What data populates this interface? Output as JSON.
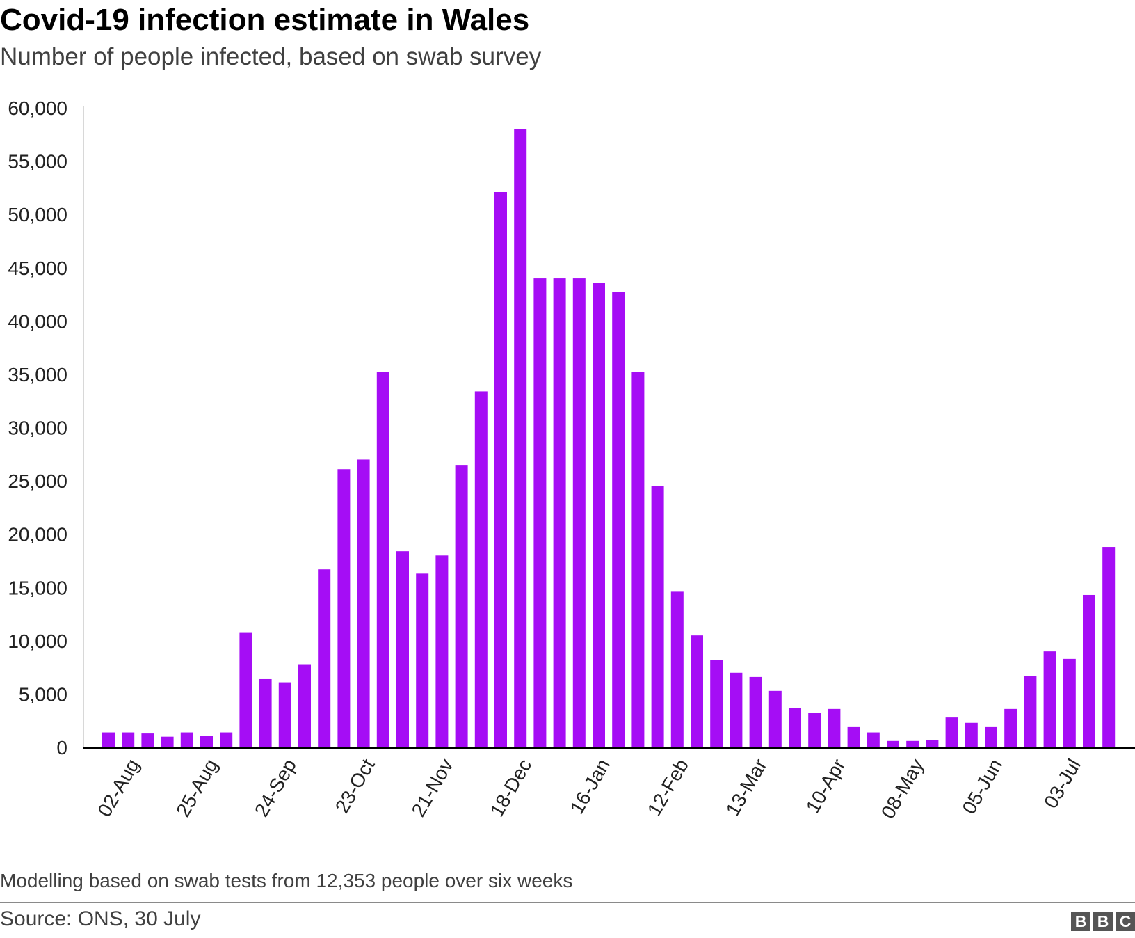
{
  "chart_data": {
    "type": "bar",
    "title": "Covid-19 infection estimate in Wales",
    "subtitle": "Number of people infected, based on swab survey",
    "xlabel": "",
    "ylabel": "",
    "ylim": [
      0,
      60000
    ],
    "yticks": [
      0,
      5000,
      10000,
      15000,
      20000,
      25000,
      30000,
      35000,
      40000,
      45000,
      50000,
      55000,
      60000
    ],
    "ytick_labels": [
      "0",
      "5,000",
      "10,000",
      "15,000",
      "20,000",
      "25,000",
      "30,000",
      "35,000",
      "40,000",
      "45,000",
      "50,000",
      "55,000",
      "60,000"
    ],
    "xtick_labels": [
      {
        "index": 1,
        "label": "02-Aug"
      },
      {
        "index": 5,
        "label": "25-Aug"
      },
      {
        "index": 9,
        "label": "24-Sep"
      },
      {
        "index": 13,
        "label": "23-Oct"
      },
      {
        "index": 17,
        "label": "21-Nov"
      },
      {
        "index": 21,
        "label": "18-Dec"
      },
      {
        "index": 25,
        "label": "16-Jan"
      },
      {
        "index": 29,
        "label": "12-Feb"
      },
      {
        "index": 33,
        "label": "13-Mar"
      },
      {
        "index": 37,
        "label": "10-Apr"
      },
      {
        "index": 41,
        "label": "08-May"
      },
      {
        "index": 45,
        "label": "05-Jun"
      },
      {
        "index": 49,
        "label": "03-Jul"
      }
    ],
    "values": [
      1400,
      1400,
      1300,
      1000,
      1400,
      1100,
      1400,
      10800,
      6400,
      6100,
      7800,
      16700,
      26100,
      27000,
      35200,
      18400,
      16300,
      18000,
      26500,
      33400,
      52100,
      58000,
      44000,
      44000,
      44000,
      43600,
      42700,
      35200,
      24500,
      14600,
      10500,
      8200,
      7000,
      6600,
      5300,
      3700,
      3200,
      3600,
      1900,
      1400,
      600,
      600,
      700,
      2800,
      2300,
      1900,
      3600,
      6700,
      9000,
      8300,
      14300,
      18800
    ],
    "bar_color": "#a50df5",
    "grid": false,
    "legend": "none"
  },
  "footer": {
    "note": "Modelling based on swab tests from 12,353 people over six weeks",
    "source": "Source: ONS, 30 July",
    "logo_letters": [
      "B",
      "B",
      "C"
    ]
  }
}
